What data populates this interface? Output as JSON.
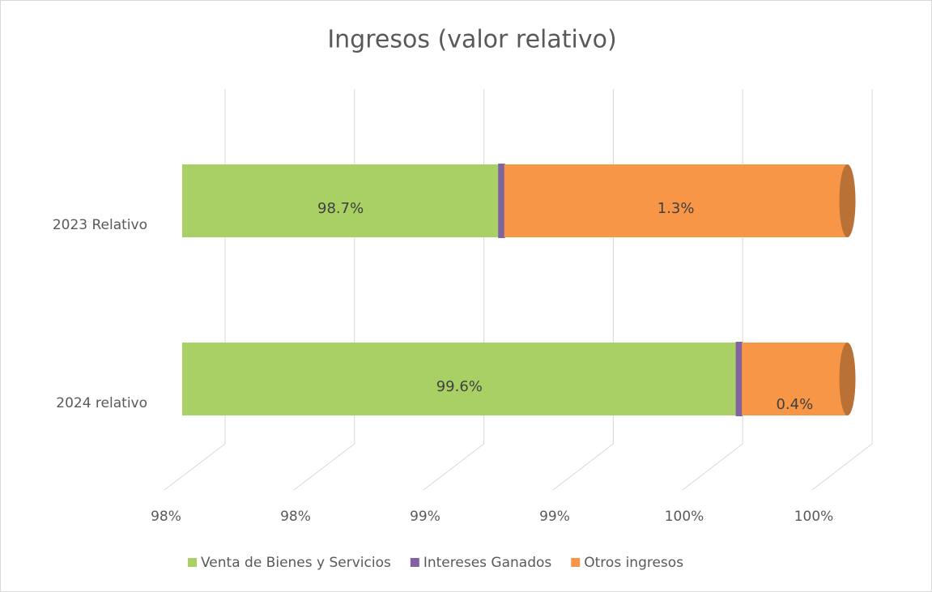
{
  "chart_data": {
    "type": "bar3d_stacked_horizontal",
    "title": "Ingresos (valor relativo)",
    "categories": [
      "2023 Relativo",
      "2024 relativo"
    ],
    "series": [
      {
        "name": "Venta de Bienes y Servicios",
        "color": "#a9d065",
        "values": [
          98.7,
          99.6
        ],
        "value_labels": [
          "98.7%",
          "99.6%"
        ]
      },
      {
        "name": "Intereses Ganados",
        "color": "#8064a2",
        "values": [
          0.02,
          0.02
        ]
      },
      {
        "name": "Otros ingresos",
        "color": "#f79646",
        "values": [
          1.3,
          0.4
        ],
        "value_labels": [
          "1.3%",
          "0.4%"
        ]
      }
    ],
    "xlim": [
      97.5,
      100
    ],
    "xticks": [
      {
        "value": 97.5,
        "label": "98%"
      },
      {
        "value": 98,
        "label": "98%"
      },
      {
        "value": 98.5,
        "label": "99%"
      },
      {
        "value": 99,
        "label": "99%"
      },
      {
        "value": 99.5,
        "label": "100%"
      },
      {
        "value": 100,
        "label": "100%"
      }
    ],
    "grid": true,
    "legend": "bottom"
  }
}
